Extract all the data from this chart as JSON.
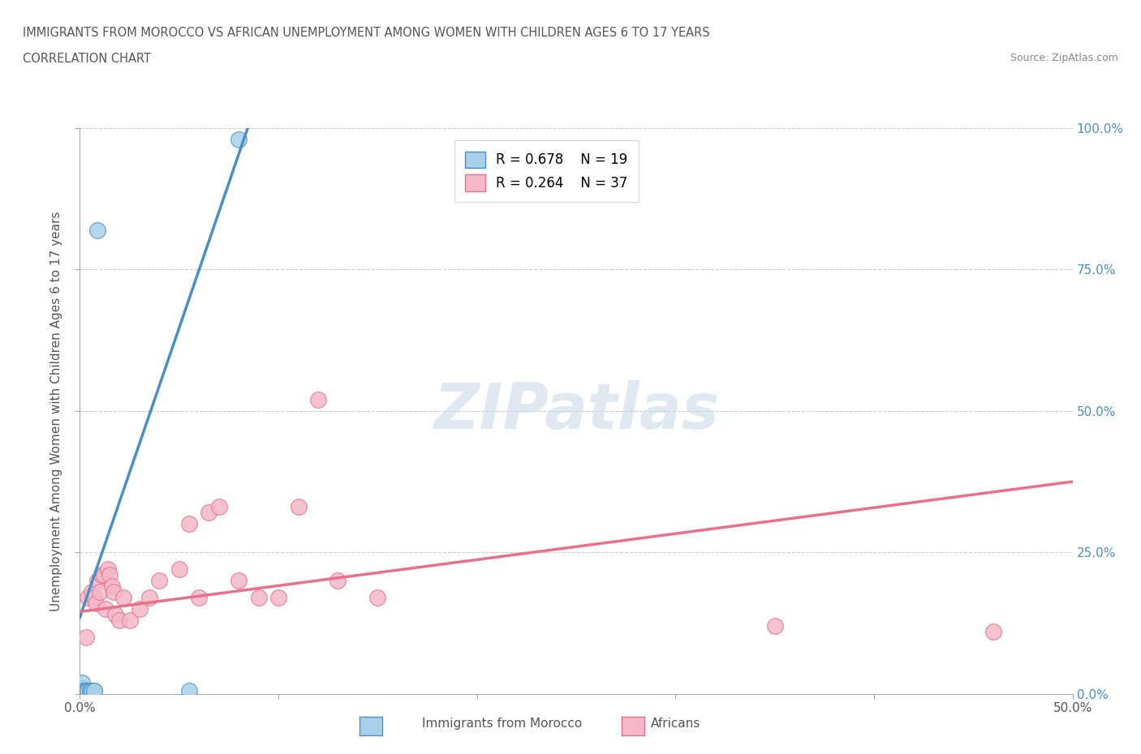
{
  "title1": "IMMIGRANTS FROM MOROCCO VS AFRICAN UNEMPLOYMENT AMONG WOMEN WITH CHILDREN AGES 6 TO 17 YEARS",
  "title2": "CORRELATION CHART",
  "source": "Source: ZipAtlas.com",
  "ylabel": "Unemployment Among Women with Children Ages 6 to 17 years",
  "xlim": [
    0,
    0.5
  ],
  "ylim": [
    0,
    1.0
  ],
  "xticks": [
    0.0,
    0.1,
    0.2,
    0.3,
    0.4,
    0.5
  ],
  "xtick_labels": [
    "0.0%",
    "",
    "",
    "",
    "",
    "50.0%"
  ],
  "yticks": [
    0.0,
    0.25,
    0.5,
    0.75,
    1.0
  ],
  "ytick_labels": [
    "0.0%",
    "25.0%",
    "50.0%",
    "75.0%",
    "100.0%"
  ],
  "blue_R": 0.678,
  "blue_N": 19,
  "pink_R": 0.264,
  "pink_N": 37,
  "blue_color": "#A8D0E8",
  "pink_color": "#F4B8C8",
  "blue_line_color": "#4A90C4",
  "pink_line_color": "#E8708A",
  "blue_scatter": [
    [
      0.0005,
      0.005
    ],
    [
      0.001,
      0.005
    ],
    [
      0.001,
      0.01
    ],
    [
      0.001,
      0.02
    ],
    [
      0.002,
      0.005
    ],
    [
      0.002,
      0.005
    ],
    [
      0.003,
      0.005
    ],
    [
      0.003,
      0.005
    ],
    [
      0.004,
      0.005
    ],
    [
      0.004,
      0.005
    ],
    [
      0.005,
      0.005
    ],
    [
      0.005,
      0.005
    ],
    [
      0.006,
      0.005
    ],
    [
      0.006,
      0.005
    ],
    [
      0.007,
      0.005
    ],
    [
      0.007,
      0.005
    ],
    [
      0.009,
      0.82
    ],
    [
      0.055,
      0.005
    ],
    [
      0.08,
      0.98
    ]
  ],
  "pink_scatter": [
    [
      0.002,
      0.005
    ],
    [
      0.003,
      0.1
    ],
    [
      0.004,
      0.17
    ],
    [
      0.005,
      0.005
    ],
    [
      0.006,
      0.18
    ],
    [
      0.007,
      0.17
    ],
    [
      0.008,
      0.16
    ],
    [
      0.009,
      0.2
    ],
    [
      0.01,
      0.18
    ],
    [
      0.011,
      0.21
    ],
    [
      0.012,
      0.21
    ],
    [
      0.013,
      0.15
    ],
    [
      0.014,
      0.22
    ],
    [
      0.015,
      0.21
    ],
    [
      0.016,
      0.19
    ],
    [
      0.017,
      0.18
    ],
    [
      0.018,
      0.14
    ],
    [
      0.02,
      0.13
    ],
    [
      0.022,
      0.17
    ],
    [
      0.025,
      0.13
    ],
    [
      0.03,
      0.15
    ],
    [
      0.035,
      0.17
    ],
    [
      0.04,
      0.2
    ],
    [
      0.05,
      0.22
    ],
    [
      0.055,
      0.3
    ],
    [
      0.06,
      0.17
    ],
    [
      0.065,
      0.32
    ],
    [
      0.07,
      0.33
    ],
    [
      0.08,
      0.2
    ],
    [
      0.09,
      0.17
    ],
    [
      0.1,
      0.17
    ],
    [
      0.11,
      0.33
    ],
    [
      0.12,
      0.52
    ],
    [
      0.13,
      0.2
    ],
    [
      0.15,
      0.17
    ],
    [
      0.35,
      0.12
    ],
    [
      0.46,
      0.11
    ]
  ],
  "blue_trend_x": [
    0.0,
    0.085
  ],
  "blue_trend_y": [
    0.135,
    1.005
  ],
  "pink_trend_x": [
    0.0,
    0.5
  ],
  "pink_trend_y": [
    0.145,
    0.375
  ]
}
